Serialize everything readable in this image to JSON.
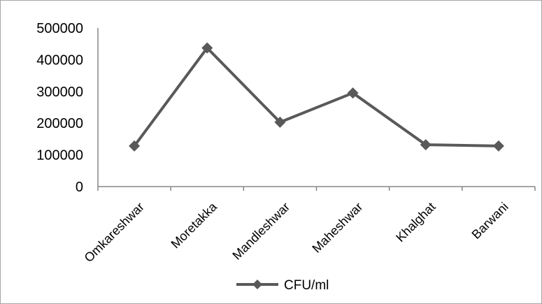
{
  "chart_data": {
    "type": "line",
    "title": "",
    "xlabel": "",
    "ylabel": "",
    "categories": [
      "Omkareshwar",
      "Moretakka",
      "Mandleshwar",
      "Maheshwar",
      "Khalghat",
      "Barwani"
    ],
    "series": [
      {
        "name": "CFU/ml",
        "color": "#595959",
        "marker": "diamond",
        "values": [
          128000,
          437000,
          203000,
          295000,
          132000,
          128000
        ]
      }
    ],
    "ylim": [
      0,
      500000
    ],
    "yticks": [
      "0",
      "100000",
      "200000",
      "300000",
      "400000",
      "500000"
    ],
    "grid": false,
    "legend_position": "bottom"
  }
}
